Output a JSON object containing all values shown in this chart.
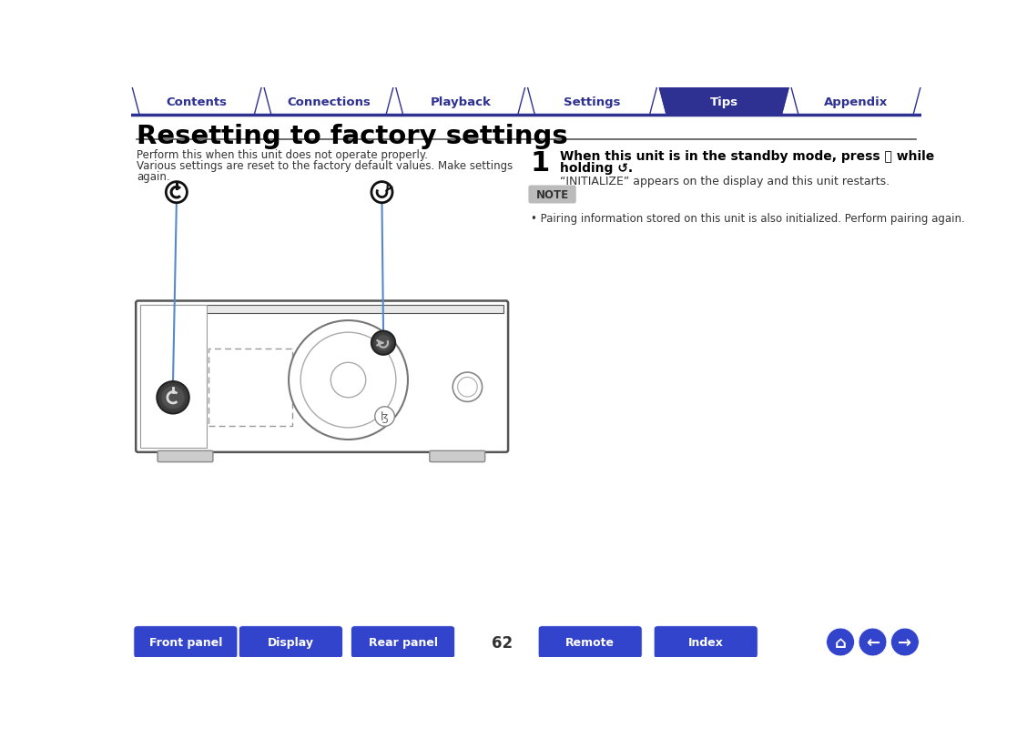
{
  "tab_labels": [
    "Contents",
    "Connections",
    "Playback",
    "Settings",
    "Tips",
    "Appendix"
  ],
  "active_tab": 4,
  "tab_bg_active": "#2e3192",
  "tab_bg_inactive": "#ffffff",
  "tab_border_color": "#2e3192",
  "tab_text_color_active": "#ffffff",
  "tab_text_color_inactive": "#2e3192",
  "title": "Resetting to factory settings",
  "title_color": "#000000",
  "separator_color": "#555555",
  "body_text_line1": "Perform this when this unit does not operate properly.",
  "body_text_line2": "Various settings are reset to the factory default values. Make settings",
  "body_text_line3": "again.",
  "body_text_color": "#333333",
  "step_number": "1",
  "step_bold_line1": "When this unit is in the standby mode, press  while",
  "step_bold_line2": "holding .",
  "step_normal_text": "“INITIALIZE” appears on the display and this unit restarts.",
  "note_label": "NOTE",
  "note_text": "Pairing information stored on this unit is also initialized. Perform pairing again.",
  "note_bg": "#aaaaaa",
  "note_text_color": "#333333",
  "bottom_buttons": [
    "Front panel",
    "Display",
    "Rear panel",
    "Remote",
    "Index"
  ],
  "page_number": "62",
  "btn_color": "#3344cc",
  "bg_color": "#ffffff",
  "blue_line_color": "#5588cc",
  "device_line_color": "#555555",
  "device_light_color": "#cccccc"
}
